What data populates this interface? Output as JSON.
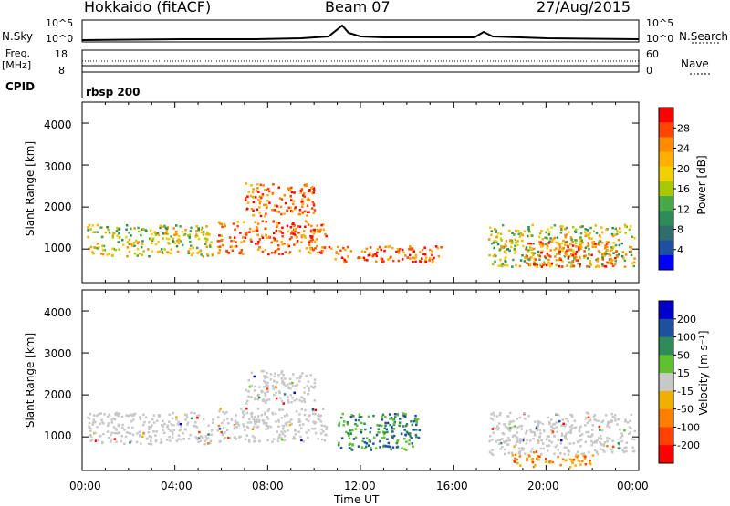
{
  "header": {
    "station": "Hokkaido (fitACF)",
    "beam": "Beam 07",
    "date": "27/Aug/2015"
  },
  "top_panels": {
    "nsky_label": "N.Sky",
    "nsky_ticks": [
      "10^5",
      "10^0"
    ],
    "nsearch_label": "N.Search",
    "nsearch_ticks": [
      "10^5",
      "10^0"
    ],
    "freq_label": "Freq.",
    "freq_unit": "[MHz]",
    "freq_ticks": [
      "18",
      "8"
    ],
    "nave_label": "Nave",
    "nave_ticks": [
      "60",
      "0"
    ],
    "cpid_label": "CPID",
    "cpid_value": "rbsp 200"
  },
  "chart_data": [
    {
      "type": "heatmap",
      "name": "power",
      "ylabel": "Slant Range [km]",
      "xlabel": "Time UT",
      "ylim": [
        200,
        4500
      ],
      "xlim": [
        "00:00",
        "24:00"
      ],
      "yticks": [
        "4000",
        "3000",
        "2000",
        "1000"
      ],
      "xticks": [
        "00:00",
        "04:00",
        "08:00",
        "12:00",
        "16:00",
        "20:00",
        "00:00"
      ],
      "colorbar": {
        "label": "Power [dB]",
        "ticks": [
          "28",
          "24",
          "20",
          "16",
          "12",
          "8",
          "4"
        ],
        "colors": [
          "#ff0000",
          "#ff4500",
          "#ff8c00",
          "#ffb000",
          "#f0d000",
          "#a8c800",
          "#48a848",
          "#2e8b57",
          "#2e6e6e",
          "#1e4fa0",
          "#0000ff"
        ]
      },
      "regions": [
        {
          "t0": 0.2,
          "t1": 5.6,
          "r0": 850,
          "r1": 1600,
          "level": "mid"
        },
        {
          "t0": 5.8,
          "t1": 10.5,
          "r0": 900,
          "r1": 1700,
          "level": "high"
        },
        {
          "t0": 7.0,
          "t1": 10.0,
          "r0": 1800,
          "r1": 2600,
          "level": "high"
        },
        {
          "t0": 10.5,
          "t1": 15.5,
          "r0": 700,
          "r1": 1100,
          "level": "high"
        },
        {
          "t0": 17.5,
          "t1": 23.8,
          "r0": 600,
          "r1": 1600,
          "level": "mid"
        },
        {
          "t0": 19.0,
          "t1": 23.0,
          "r0": 600,
          "r1": 1200,
          "level": "high"
        }
      ]
    },
    {
      "type": "heatmap",
      "name": "velocity",
      "ylabel": "Slant Range [km]",
      "xlabel": "Time UT",
      "ylim": [
        200,
        4500
      ],
      "xlim": [
        "00:00",
        "24:00"
      ],
      "yticks": [
        "4000",
        "3000",
        "2000",
        "1000"
      ],
      "xticks": [
        "00:00",
        "04:00",
        "08:00",
        "12:00",
        "16:00",
        "20:00",
        "00:00"
      ],
      "colorbar": {
        "label": "Velocity [m s⁻¹]",
        "ticks": [
          "200",
          "100",
          "50",
          "15",
          "-15",
          "-50",
          "-100",
          "-200"
        ],
        "colors": [
          "#0000cc",
          "#1e50a0",
          "#2e8b57",
          "#60c030",
          "#c8c8c8",
          "#f0b000",
          "#ff8000",
          "#ff4000",
          "#ff0000"
        ]
      },
      "regions": [
        {
          "t0": 0.2,
          "t1": 5.6,
          "r0": 850,
          "r1": 1600,
          "level": "ground"
        },
        {
          "t0": 5.8,
          "t1": 10.5,
          "r0": 900,
          "r1": 1700,
          "level": "ground"
        },
        {
          "t0": 7.0,
          "t1": 10.0,
          "r0": 1800,
          "r1": 2600,
          "level": "ground"
        },
        {
          "t0": 11.0,
          "t1": 14.5,
          "r0": 700,
          "r1": 1600,
          "level": "positive"
        },
        {
          "t0": 17.5,
          "t1": 23.8,
          "r0": 600,
          "r1": 1600,
          "level": "ground"
        },
        {
          "t0": 18.5,
          "t1": 22.0,
          "r0": 300,
          "r1": 600,
          "level": "negative"
        }
      ]
    }
  ],
  "colors": {
    "axis": "#000000",
    "ground": "#c8c8c8",
    "power_high": "#ff2000",
    "power_mid": "#48a848"
  }
}
